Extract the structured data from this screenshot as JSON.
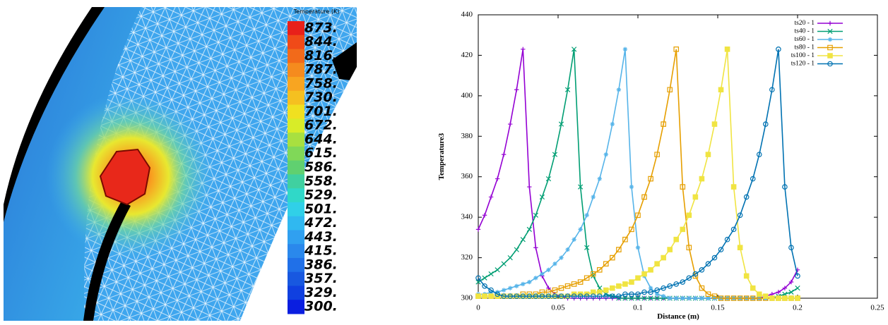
{
  "simulation": {
    "colorbar": {
      "title": "Temperature (K)",
      "labels": [
        "873.",
        "844.",
        "816.",
        "787.",
        "758.",
        "730.",
        "701.",
        "672.",
        "644.",
        "615.",
        "586.",
        "558.",
        "529.",
        "501.",
        "472.",
        "443.",
        "415.",
        "386.",
        "357.",
        "329.",
        "300."
      ],
      "colors": [
        "#e8201a",
        "#f04a18",
        "#f26a1a",
        "#f58b1e",
        "#f8a521",
        "#f5c020",
        "#f0e020",
        "#d8ec28",
        "#a8e040",
        "#80d858",
        "#60d070",
        "#40d0a0",
        "#30d8c8",
        "#30d0e8",
        "#30b8f0",
        "#30a0f0",
        "#2a88ec",
        "#2070e8",
        "#1858e0",
        "#1040e0",
        "#0a1ee0"
      ]
    }
  },
  "chart_data": {
    "type": "line",
    "xlabel": "Distance (m)",
    "ylabel": "Temperature3",
    "x": [
      0,
      0.004,
      0.008,
      0.012,
      0.016,
      0.02,
      0.024,
      0.028,
      0.032,
      0.036,
      0.04,
      0.044,
      0.048,
      0.052,
      0.056,
      0.06,
      0.064,
      0.068,
      0.072,
      0.076,
      0.08,
      0.084,
      0.088,
      0.092,
      0.096,
      0.1,
      0.104,
      0.108,
      0.112,
      0.116,
      0.12,
      0.124,
      0.128,
      0.132,
      0.136,
      0.14,
      0.144,
      0.148,
      0.152,
      0.156,
      0.16,
      0.164,
      0.168,
      0.172,
      0.176,
      0.18,
      0.184,
      0.188,
      0.192,
      0.196,
      0.2
    ],
    "series": [
      {
        "name": "ts20 - 1",
        "color": "#9400d3",
        "marker": "plus",
        "values": [
          334,
          341,
          350,
          359,
          371,
          386,
          403,
          423,
          355,
          325,
          311,
          305,
          302,
          301,
          300,
          300,
          300,
          300,
          300,
          300,
          300,
          300,
          300,
          300,
          300,
          300,
          300,
          300,
          300,
          300,
          300,
          300,
          300,
          300,
          300,
          300,
          300,
          300,
          300,
          300,
          300,
          300,
          300,
          300,
          300,
          301,
          302,
          303,
          305,
          308,
          314
        ]
      },
      {
        "name": "ts40 - 1",
        "color": "#009e73",
        "marker": "cross",
        "values": [
          308,
          310,
          312,
          314,
          317,
          320,
          324,
          329,
          334,
          341,
          350,
          359,
          371,
          386,
          403,
          423,
          355,
          325,
          311,
          305,
          302,
          301,
          300,
          300,
          300,
          300,
          300,
          300,
          300,
          300,
          300,
          300,
          300,
          300,
          300,
          300,
          300,
          300,
          300,
          300,
          300,
          300,
          300,
          300,
          300,
          300,
          300,
          301,
          302,
          303,
          305
        ]
      },
      {
        "name": "ts60 - 1",
        "color": "#56b4e9",
        "marker": "star",
        "values": [
          302,
          302,
          303,
          303,
          304,
          305,
          306,
          307,
          308,
          310,
          312,
          314,
          317,
          320,
          324,
          329,
          334,
          341,
          350,
          359,
          371,
          386,
          403,
          423,
          355,
          325,
          311,
          305,
          302,
          301,
          300,
          300,
          300,
          300,
          300,
          300,
          300,
          300,
          300,
          300,
          300,
          300,
          300,
          300,
          300,
          300,
          300,
          300,
          300,
          300,
          300
        ]
      },
      {
        "name": "ts80 - 1",
        "color": "#e69f00",
        "marker": "square",
        "values": [
          301,
          301,
          301,
          301,
          301,
          301,
          301,
          302,
          302,
          302,
          303,
          303,
          304,
          305,
          306,
          307,
          308,
          310,
          312,
          314,
          317,
          320,
          324,
          329,
          334,
          341,
          350,
          359,
          371,
          386,
          403,
          423,
          355,
          325,
          311,
          305,
          302,
          301,
          300,
          300,
          300,
          300,
          300,
          300,
          300,
          300,
          300,
          300,
          300,
          300,
          300
        ]
      },
      {
        "name": "ts100 - 1",
        "color": "#f0e442",
        "marker": "filled-square",
        "values": [
          301,
          301,
          301,
          301,
          301,
          301,
          301,
          301,
          301,
          301,
          301,
          301,
          301,
          301,
          301,
          302,
          302,
          302,
          303,
          303,
          304,
          305,
          306,
          307,
          308,
          310,
          312,
          314,
          317,
          320,
          324,
          329,
          334,
          341,
          350,
          359,
          371,
          386,
          403,
          423,
          355,
          325,
          311,
          305,
          302,
          301,
          300,
          300,
          300,
          300,
          300
        ]
      },
      {
        "name": "ts120 - 1",
        "color": "#0072b2",
        "marker": "circle",
        "values": [
          310,
          306,
          304,
          302,
          301,
          301,
          301,
          301,
          301,
          301,
          301,
          301,
          301,
          301,
          301,
          301,
          301,
          301,
          301,
          301,
          301,
          301,
          301,
          302,
          302,
          302,
          303,
          303,
          304,
          305,
          306,
          307,
          308,
          310,
          312,
          314,
          317,
          320,
          324,
          329,
          334,
          341,
          350,
          359,
          371,
          386,
          403,
          423,
          355,
          325,
          311
        ]
      }
    ],
    "xlim": [
      0,
      0.25
    ],
    "ylim": [
      300,
      440
    ],
    "xticks": [
      0,
      0.05,
      0.1,
      0.15,
      0.2,
      0.25
    ],
    "yticks": [
      300,
      320,
      340,
      360,
      380,
      400,
      420,
      440
    ],
    "legend": "upper right",
    "grid": false
  }
}
